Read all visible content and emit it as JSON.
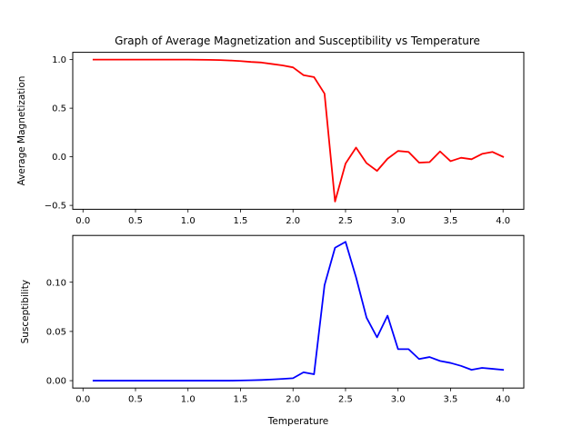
{
  "chart_data": [
    {
      "type": "line",
      "title": "Graph of Average Magnetization and Susceptibility vs Temperature",
      "xlabel": "",
      "ylabel": "Average Magnetization",
      "xlim": [
        -0.0975,
        4.1975
      ],
      "ylim": [
        -0.54,
        1.075
      ],
      "xticks": [
        {
          "value": 0.0,
          "label": "0.0"
        },
        {
          "value": 0.5,
          "label": "0.5"
        },
        {
          "value": 1.0,
          "label": "1.0"
        },
        {
          "value": 1.5,
          "label": "1.5"
        },
        {
          "value": 2.0,
          "label": "2.0"
        },
        {
          "value": 2.5,
          "label": "2.5"
        },
        {
          "value": 3.0,
          "label": "3.0"
        },
        {
          "value": 3.5,
          "label": "3.5"
        },
        {
          "value": 4.0,
          "label": "4.0"
        }
      ],
      "yticks": [
        {
          "value": -0.5,
          "label": "−0.5"
        },
        {
          "value": 0.0,
          "label": "0.0"
        },
        {
          "value": 0.5,
          "label": "0.5"
        },
        {
          "value": 1.0,
          "label": "1.0"
        }
      ],
      "grid": false,
      "series": [
        {
          "color": "#ff0000",
          "x": [
            0.1,
            0.2,
            0.3,
            0.4,
            0.5,
            0.6,
            0.7,
            0.8,
            0.9,
            1.0,
            1.1,
            1.2,
            1.3,
            1.4,
            1.5,
            1.6,
            1.7,
            1.8,
            1.9,
            2.0,
            2.1,
            2.2,
            2.3,
            2.4,
            2.5,
            2.6,
            2.7,
            2.8,
            2.9,
            3.0,
            3.1,
            3.2,
            3.3,
            3.4,
            3.5,
            3.6,
            3.7,
            3.8,
            3.9,
            4.0
          ],
          "y": [
            1.0,
            1.0,
            1.0,
            1.0,
            1.0,
            1.0,
            1.0,
            1.0,
            1.0,
            1.0,
            0.999,
            0.998,
            0.995,
            0.991,
            0.985,
            0.976,
            0.97,
            0.955,
            0.94,
            0.92,
            0.84,
            0.82,
            0.65,
            -0.46,
            -0.07,
            0.095,
            -0.065,
            -0.145,
            -0.02,
            0.06,
            0.05,
            -0.06,
            -0.055,
            0.055,
            -0.045,
            -0.01,
            -0.025,
            0.03,
            0.05,
            0.0
          ]
        }
      ]
    },
    {
      "type": "line",
      "title": "",
      "xlabel": "Temperature",
      "ylabel": "Susceptibility",
      "xlim": [
        -0.0975,
        4.1975
      ],
      "ylim": [
        -0.0075,
        0.1475
      ],
      "xticks": [
        {
          "value": 0.0,
          "label": "0.0"
        },
        {
          "value": 0.5,
          "label": "0.5"
        },
        {
          "value": 1.0,
          "label": "1.0"
        },
        {
          "value": 1.5,
          "label": "1.5"
        },
        {
          "value": 2.0,
          "label": "2.0"
        },
        {
          "value": 2.5,
          "label": "2.5"
        },
        {
          "value": 3.0,
          "label": "3.0"
        },
        {
          "value": 3.5,
          "label": "3.5"
        },
        {
          "value": 4.0,
          "label": "4.0"
        }
      ],
      "yticks": [
        {
          "value": 0.0,
          "label": "0.00"
        },
        {
          "value": 0.05,
          "label": "0.05"
        },
        {
          "value": 0.1,
          "label": "0.10"
        }
      ],
      "grid": false,
      "series": [
        {
          "color": "#0000ff",
          "x": [
            0.1,
            0.2,
            0.3,
            0.4,
            0.5,
            0.6,
            0.7,
            0.8,
            0.9,
            1.0,
            1.1,
            1.2,
            1.3,
            1.4,
            1.5,
            1.6,
            1.7,
            1.8,
            1.9,
            2.0,
            2.1,
            2.2,
            2.3,
            2.4,
            2.5,
            2.6,
            2.7,
            2.8,
            2.9,
            3.0,
            3.1,
            3.2,
            3.3,
            3.4,
            3.5,
            3.6,
            3.7,
            3.8,
            3.9,
            4.0
          ],
          "y": [
            0.0,
            0.0,
            0.0,
            0.0,
            0.0,
            0.0,
            0.0,
            0.0,
            0.0,
            0.0,
            0.0,
            0.0,
            0.0,
            0.0,
            0.0002,
            0.0004,
            0.0007,
            0.0012,
            0.0018,
            0.0025,
            0.0085,
            0.0065,
            0.097,
            0.135,
            0.141,
            0.105,
            0.064,
            0.044,
            0.066,
            0.032,
            0.032,
            0.022,
            0.024,
            0.02,
            0.018,
            0.015,
            0.011,
            0.013,
            0.012,
            0.011
          ]
        }
      ]
    }
  ]
}
